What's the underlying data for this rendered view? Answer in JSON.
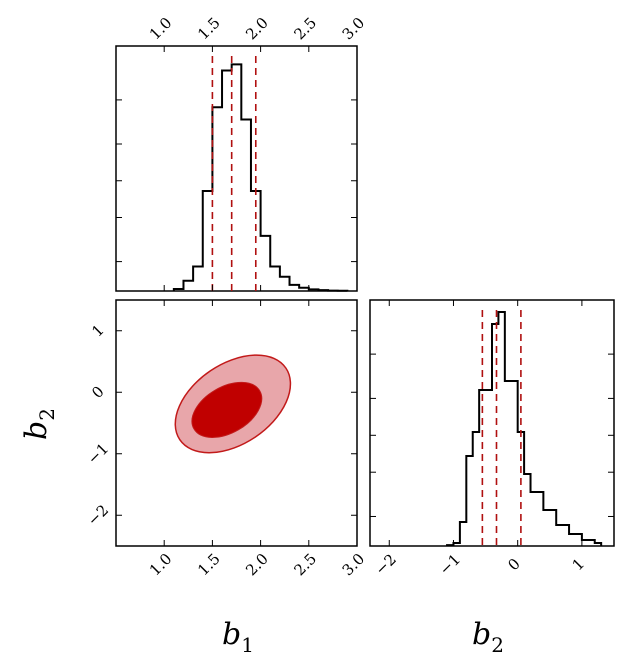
{
  "chart_data": [
    {
      "type": "histogram",
      "panel": "b1-marginal",
      "bin_edges": [
        1.1,
        1.2,
        1.3,
        1.4,
        1.5,
        1.6,
        1.7,
        1.8,
        1.9,
        2.0,
        2.1,
        2.2,
        2.3,
        2.4,
        2.5,
        2.6,
        2.7,
        2.8,
        2.9
      ],
      "counts": [
        0.5,
        2.5,
        6,
        24.5,
        45,
        54,
        55.5,
        42,
        24.5,
        13.5,
        6,
        3.5,
        1.5,
        0.8,
        0.4,
        0.2,
        0.1,
        0.05
      ],
      "quantiles": [
        1.5,
        1.7,
        1.95
      ],
      "xlim": [
        0.5,
        3.0
      ],
      "ylim": [
        0,
        60
      ],
      "xticks": [
        "1.0",
        "1.5",
        "2.0",
        "2.5",
        "3.0"
      ],
      "line_color": "#000000",
      "quantile_color": "#b01010"
    },
    {
      "type": "contour",
      "panel": "b1-b2-joint",
      "x_center": 1.65,
      "y_center": -0.45,
      "levels": [
        "inner",
        "outer"
      ],
      "xlim": [
        0.5,
        3.0
      ],
      "ylim": [
        -2.5,
        1.5
      ],
      "xticks": [
        "1.0",
        "1.5",
        "2.0",
        "2.5",
        "3.0"
      ],
      "yticks": [
        "1",
        "0",
        "−1",
        "−2"
      ],
      "xlabel": "b",
      "xlabel_sub": "1",
      "ylabel": "b",
      "ylabel_sub": "2",
      "inner_fill": "#c00000",
      "outer_fill": "#e8a6aa",
      "edge_color": "#c21a1a"
    },
    {
      "type": "histogram",
      "panel": "b2-marginal",
      "bin_edges": [
        -1.1,
        -1.0,
        -0.9,
        -0.8,
        -0.7,
        -0.6,
        -0.5,
        -0.4,
        -0.3,
        -0.2,
        -0.1,
        0.0,
        0.1,
        0.2,
        0.3,
        0.4,
        0.5,
        0.6,
        0.7,
        0.8,
        0.9,
        1.0,
        1.1,
        1.2,
        1.3
      ],
      "counts": [
        0.3,
        1,
        8,
        30,
        38,
        52,
        52,
        74,
        78,
        55,
        55,
        38,
        24,
        18,
        18,
        12,
        12,
        7,
        7,
        4,
        4,
        2,
        2,
        1
      ],
      "quantiles": [
        -0.55,
        -0.33,
        0.05
      ],
      "xlim": [
        -2.3,
        1.5
      ],
      "ylim": [
        0,
        82
      ],
      "xticks": [
        "−2",
        "−1",
        "0",
        "1"
      ],
      "xlabel": "b",
      "xlabel_sub": "2",
      "line_color": "#000000",
      "quantile_color": "#b01010"
    }
  ]
}
